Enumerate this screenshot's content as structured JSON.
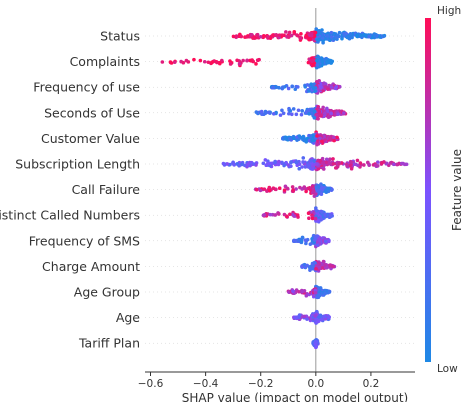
{
  "chart_data": {
    "type": "scatter",
    "xlabel": "SHAP value (impact on model output)",
    "xlim": [
      -0.62,
      0.36
    ],
    "x_ticks": [
      "−0.6",
      "−0.4",
      "−0.2",
      "0.0",
      "0.2"
    ],
    "x_tick_values": [
      -0.6,
      -0.4,
      -0.2,
      0.0,
      0.2
    ],
    "colorbar": {
      "label": "Feature value",
      "high_label": "High",
      "low_label": "Low",
      "low_color": "#1E88E5",
      "high_color": "#FF0D57"
    },
    "features": [
      {
        "name": "Status",
        "neg_min": -0.3,
        "neg_max": -0.05,
        "neg_count": 70,
        "neg_value": 0.95,
        "pos_min": 0.0,
        "pos_max": 0.25,
        "pos_count": 180,
        "pos_value": 0.1,
        "core_spread": 0.05
      },
      {
        "name": "Complaints",
        "neg_min": -0.56,
        "neg_max": -0.2,
        "neg_count": 45,
        "neg_value": 0.97,
        "pos_min": 0.0,
        "pos_max": 0.06,
        "pos_count": 140,
        "pos_value": 0.05,
        "core_spread": 0.03
      },
      {
        "name": "Frequency of use",
        "neg_min": -0.16,
        "neg_max": 0.0,
        "neg_count": 40,
        "neg_value": 0.2,
        "pos_min": 0.0,
        "pos_max": 0.09,
        "pos_count": 120,
        "pos_value": 0.7,
        "core_spread": 0.03
      },
      {
        "name": "Seconds of Use",
        "neg_min": -0.22,
        "neg_max": 0.0,
        "neg_count": 40,
        "neg_value": 0.2,
        "pos_min": 0.0,
        "pos_max": 0.11,
        "pos_count": 120,
        "pos_value": 0.7,
        "core_spread": 0.03
      },
      {
        "name": "Customer Value",
        "neg_min": -0.12,
        "neg_max": 0.0,
        "neg_count": 50,
        "neg_value": 0.15,
        "pos_min": 0.0,
        "pos_max": 0.08,
        "pos_count": 150,
        "pos_value": 0.8,
        "core_spread": 0.04
      },
      {
        "name": "Subscription Length",
        "neg_min": -0.34,
        "neg_max": 0.0,
        "neg_count": 90,
        "neg_value": 0.4,
        "pos_min": 0.0,
        "pos_max": 0.33,
        "pos_count": 110,
        "pos_value": 0.75,
        "core_spread": 0.05
      },
      {
        "name": "Call Failure",
        "neg_min": -0.22,
        "neg_max": 0.0,
        "neg_count": 45,
        "neg_value": 0.85,
        "pos_min": 0.0,
        "pos_max": 0.06,
        "pos_count": 110,
        "pos_value": 0.2,
        "core_spread": 0.03
      },
      {
        "name": "Distinct Called Numbers",
        "neg_min": -0.19,
        "neg_max": 0.0,
        "neg_count": 30,
        "neg_value": 0.8,
        "pos_min": 0.0,
        "pos_max": 0.06,
        "pos_count": 90,
        "pos_value": 0.3,
        "core_spread": 0.02
      },
      {
        "name": "Frequency of SMS",
        "neg_min": -0.08,
        "neg_max": 0.0,
        "neg_count": 30,
        "neg_value": 0.2,
        "pos_min": 0.0,
        "pos_max": 0.05,
        "pos_count": 80,
        "pos_value": 0.5,
        "core_spread": 0.02
      },
      {
        "name": "Charge Amount",
        "neg_min": -0.05,
        "neg_max": 0.0,
        "neg_count": 30,
        "neg_value": 0.3,
        "pos_min": 0.0,
        "pos_max": 0.07,
        "pos_count": 80,
        "pos_value": 0.7,
        "core_spread": 0.02
      },
      {
        "name": "Age Group",
        "neg_min": -0.1,
        "neg_max": 0.0,
        "neg_count": 30,
        "neg_value": 0.7,
        "pos_min": 0.0,
        "pos_max": 0.05,
        "pos_count": 80,
        "pos_value": 0.2,
        "core_spread": 0.02
      },
      {
        "name": "Age",
        "neg_min": -0.08,
        "neg_max": 0.0,
        "neg_count": 30,
        "neg_value": 0.5,
        "pos_min": 0.0,
        "pos_max": 0.05,
        "pos_count": 80,
        "pos_value": 0.4,
        "core_spread": 0.02
      },
      {
        "name": "Tariff Plan",
        "neg_min": -0.01,
        "neg_max": 0.0,
        "neg_count": 10,
        "neg_value": 0.3,
        "pos_min": 0.0,
        "pos_max": 0.01,
        "pos_count": 20,
        "pos_value": 0.4,
        "core_spread": 0.005
      }
    ]
  }
}
